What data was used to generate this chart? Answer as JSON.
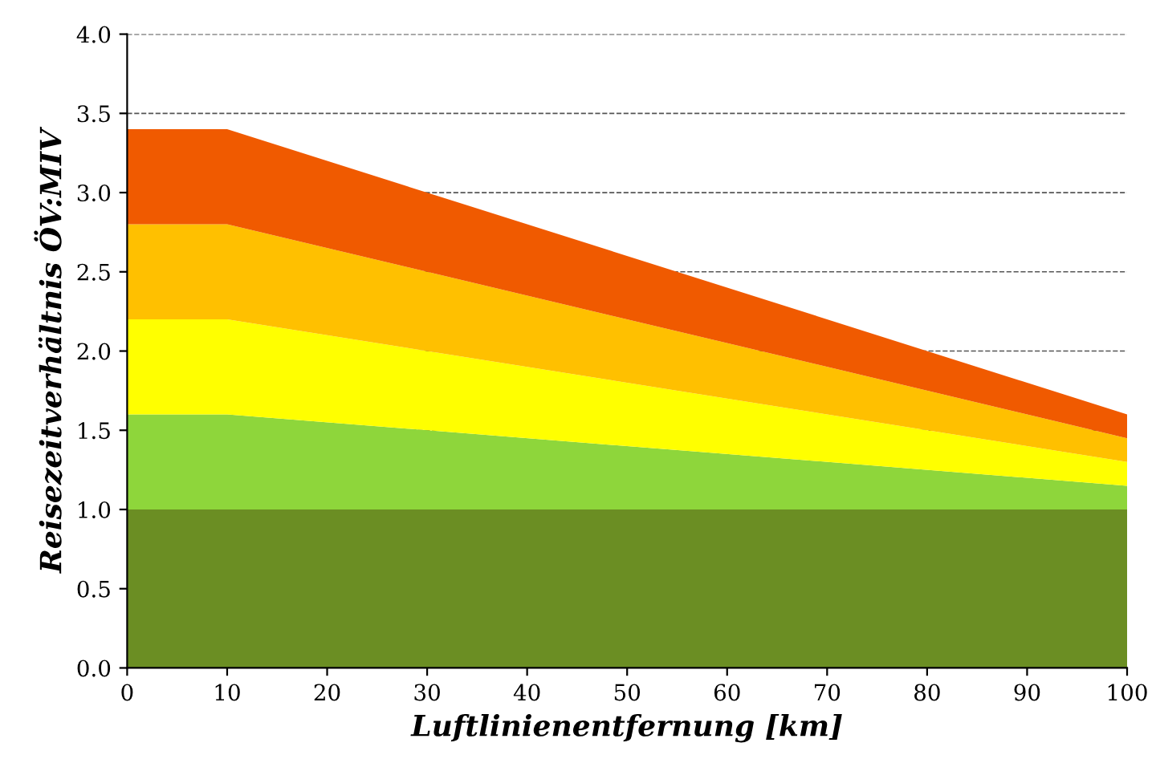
{
  "chart_data": {
    "type": "area",
    "stacked": true,
    "xlabel": "Luftlinienentfernung [km]",
    "ylabel": "Reisezeitverhältnis ÖV:MIV",
    "x": [
      0,
      10,
      100
    ],
    "series": [
      {
        "color": "#6b8e23",
        "values": [
          1.0,
          1.0,
          1.0
        ]
      },
      {
        "color": "#8ed63b",
        "values": [
          0.6,
          0.6,
          0.15
        ]
      },
      {
        "color": "#ffff00",
        "values": [
          0.6,
          0.6,
          0.15
        ]
      },
      {
        "color": "#ffc000",
        "values": [
          0.6,
          0.6,
          0.15
        ]
      },
      {
        "color": "#f05a00",
        "values": [
          0.6,
          0.6,
          0.15
        ]
      }
    ],
    "xlim": [
      0,
      100
    ],
    "xticks": [
      0,
      10,
      20,
      30,
      40,
      50,
      60,
      70,
      80,
      90,
      100
    ],
    "ylim": [
      0,
      4
    ],
    "yticks": [
      {
        "value": 0,
        "label": "0.0"
      },
      {
        "value": 0.5,
        "label": "0.5"
      },
      {
        "value": 1,
        "label": "1.0"
      },
      {
        "value": 1.5,
        "label": "1.5"
      },
      {
        "value": 2,
        "label": "2.0"
      },
      {
        "value": 2.5,
        "label": "2.5"
      },
      {
        "value": 3,
        "label": "3.0"
      },
      {
        "value": 3.5,
        "label": "3.5"
      },
      {
        "value": 4,
        "label": "4.0"
      }
    ],
    "grid": "y",
    "legend": false
  }
}
